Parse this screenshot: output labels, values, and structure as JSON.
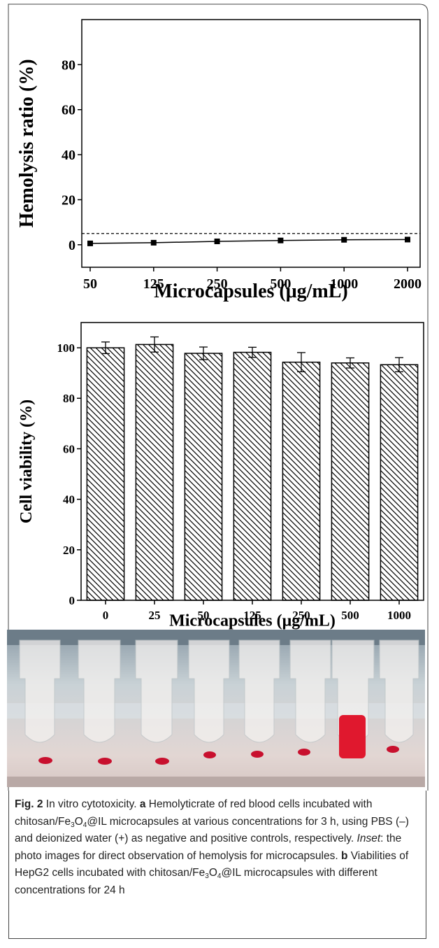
{
  "chart_data": [
    {
      "type": "line",
      "x_label": "Microcapsules (μg/mL)",
      "y_label": "Hemolysis ratio (%)",
      "categories": [
        "50",
        "125",
        "250",
        "500",
        "1000",
        "2000"
      ],
      "values": [
        0.6,
        0.9,
        1.5,
        1.9,
        2.2,
        2.3
      ],
      "color": "#000000",
      "ylim": [
        -10,
        100
      ],
      "yticks": [
        0,
        20,
        40,
        60,
        80
      ],
      "reference_line": 5
    },
    {
      "type": "bar",
      "x_label": "Microcapsules (μg/mL)",
      "y_label": "Cell viability (%)",
      "categories": [
        "0",
        "25",
        "50",
        "125",
        "250",
        "500",
        "1000"
      ],
      "values": [
        100,
        101.3,
        97.8,
        98.2,
        94.3,
        94,
        93.3
      ],
      "errors": [
        2.3,
        3,
        2.5,
        2,
        3.8,
        2,
        2.8
      ],
      "color": "#000000",
      "ylim": [
        0,
        110
      ],
      "yticks": [
        0,
        20,
        40,
        60,
        80,
        100
      ]
    }
  ],
  "caption": {
    "parts": [
      "Fig. 2",
      " In vitro cytotoxicity. ",
      "a",
      " Hemolyticrate of red blood cells incubated with chitosan/Fe",
      "3",
      "O",
      "4",
      "@IL microcapsules at various concentrations for 3 h, using PBS (–) and deionized water (+) as negative and positive controls, respectively. ",
      "Inset",
      ": the photo images for direct observation of hemolysis for microcapsules. ",
      "b",
      " Viabilities of HepG2 cells incubated with chitosan/Fe",
      "3",
      "O",
      "4",
      "@IL microcapsules with different concentrations for 24 h"
    ]
  }
}
